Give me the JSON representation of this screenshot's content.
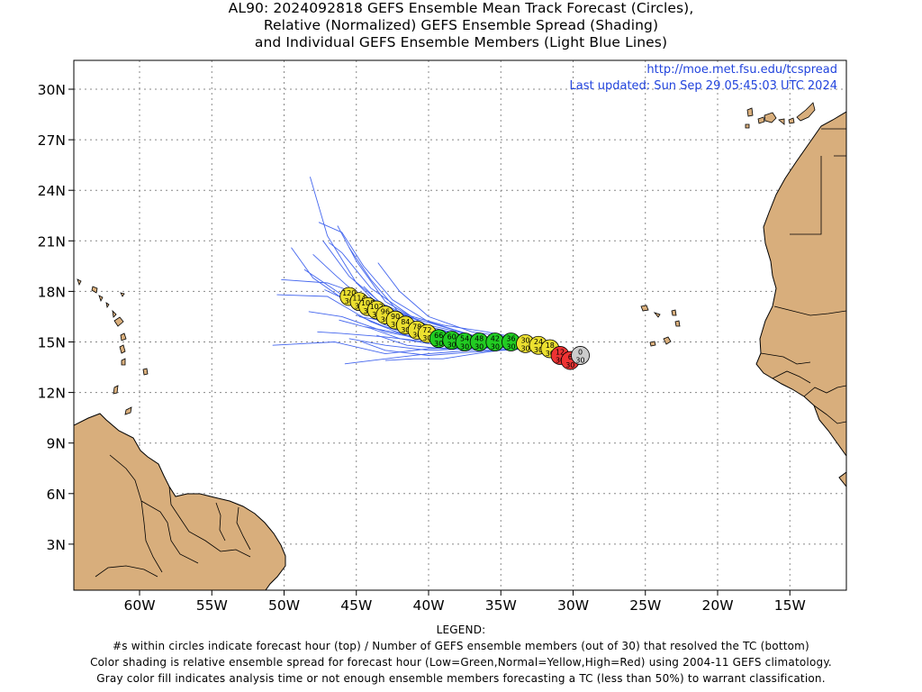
{
  "title": {
    "line1": "AL90: 2024092818 GEFS Ensemble Mean Track Forecast (Circles),",
    "line2": "Relative (Normalized) GEFS Ensemble Spread (Shading)",
    "line3": "and Individual GEFS Ensemble Members (Light Blue Lines)"
  },
  "header_links": {
    "url": "http://moe.met.fsu.edu/tcspread",
    "updated": "Last updated: Sun Sep 29 05:45:03 UTC 2024"
  },
  "axes": {
    "lat_ticks": [
      {
        "value": 3,
        "label": "3N"
      },
      {
        "value": 6,
        "label": "6N"
      },
      {
        "value": 9,
        "label": "9N"
      },
      {
        "value": 12,
        "label": "12N"
      },
      {
        "value": 15,
        "label": "15N"
      },
      {
        "value": 18,
        "label": "18N"
      },
      {
        "value": 21,
        "label": "21N"
      },
      {
        "value": 24,
        "label": "24N"
      },
      {
        "value": 27,
        "label": "27N"
      },
      {
        "value": 30,
        "label": "30N"
      }
    ],
    "lon_ticks": [
      {
        "value": -60,
        "label": "60W"
      },
      {
        "value": -55,
        "label": "55W"
      },
      {
        "value": -50,
        "label": "50W"
      },
      {
        "value": -45,
        "label": "45W"
      },
      {
        "value": -40,
        "label": "40W"
      },
      {
        "value": -35,
        "label": "35W"
      },
      {
        "value": -30,
        "label": "30W"
      },
      {
        "value": -25,
        "label": "25W"
      },
      {
        "value": -20,
        "label": "20W"
      },
      {
        "value": -15,
        "label": "15W"
      }
    ],
    "lon_range": [
      -64.5,
      -11.1
    ],
    "lat_range": [
      0.4,
      31.5
    ],
    "grid": true
  },
  "colors": {
    "land": "#d8ae7c",
    "coast": "#000000",
    "grid": "#888888",
    "members": "#4466ee",
    "low": "#22cc22",
    "normal": "#ece030",
    "high": "#ee3333",
    "gray": "#cccccc",
    "link": "#2244dd"
  },
  "mean_track": [
    {
      "lon": -29.5,
      "lat": 14.2,
      "hour": "0",
      "members": "30",
      "spread": "gray"
    },
    {
      "lon": -30.2,
      "lat": 13.9,
      "hour": "6",
      "members": "30",
      "spread": "high"
    },
    {
      "lon": -30.9,
      "lat": 14.2,
      "hour": "12",
      "members": "30",
      "spread": "high"
    },
    {
      "lon": -31.6,
      "lat": 14.6,
      "hour": "18",
      "members": "30",
      "spread": "normal"
    },
    {
      "lon": -32.4,
      "lat": 14.8,
      "hour": "24",
      "members": "30",
      "spread": "normal"
    },
    {
      "lon": -33.3,
      "lat": 14.9,
      "hour": "30",
      "members": "30",
      "spread": "normal"
    },
    {
      "lon": -34.3,
      "lat": 15.0,
      "hour": "36",
      "members": "30",
      "spread": "low"
    },
    {
      "lon": -35.4,
      "lat": 15.0,
      "hour": "42",
      "members": "30",
      "spread": "low"
    },
    {
      "lon": -36.5,
      "lat": 15.0,
      "hour": "48",
      "members": "30",
      "spread": "low"
    },
    {
      "lon": -37.5,
      "lat": 15.0,
      "hour": "54",
      "members": "30",
      "spread": "low"
    },
    {
      "lon": -38.4,
      "lat": 15.1,
      "hour": "60",
      "members": "30",
      "spread": "low"
    },
    {
      "lon": -39.3,
      "lat": 15.2,
      "hour": "66",
      "members": "30",
      "spread": "low"
    },
    {
      "lon": -40.1,
      "lat": 15.5,
      "hour": "72",
      "members": "30",
      "spread": "normal"
    },
    {
      "lon": -40.8,
      "lat": 15.7,
      "hour": "78",
      "members": "30",
      "spread": "normal"
    },
    {
      "lon": -41.6,
      "lat": 16.0,
      "hour": "84",
      "members": "30",
      "spread": "normal"
    },
    {
      "lon": -42.3,
      "lat": 16.3,
      "hour": "90",
      "members": "30",
      "spread": "normal"
    },
    {
      "lon": -43.0,
      "lat": 16.6,
      "hour": "96",
      "members": "30",
      "spread": "normal"
    },
    {
      "lon": -43.6,
      "lat": 16.9,
      "hour": "102",
      "members": "30",
      "spread": "normal"
    },
    {
      "lon": -44.2,
      "lat": 17.1,
      "hour": "108",
      "members": "30",
      "spread": "normal"
    },
    {
      "lon": -44.8,
      "lat": 17.4,
      "hour": "114",
      "members": "30",
      "spread": "normal"
    },
    {
      "lon": -45.5,
      "lat": 17.7,
      "hour": "120",
      "members": "30",
      "spread": "normal"
    }
  ],
  "member_tracks": [
    [
      [
        -29.5,
        14.2
      ],
      [
        -33,
        14.9
      ],
      [
        -37,
        15.0
      ],
      [
        -40,
        15.3
      ],
      [
        -43,
        16.0
      ],
      [
        -46,
        17.6
      ],
      [
        -48,
        18.8
      ],
      [
        -49.5,
        20.6
      ]
    ],
    [
      [
        -29.5,
        14.2
      ],
      [
        -33,
        15.0
      ],
      [
        -37,
        15.2
      ],
      [
        -40,
        15.7
      ],
      [
        -43,
        16.8
      ],
      [
        -45,
        18.5
      ],
      [
        -47,
        21.3
      ],
      [
        -48.2,
        24.8
      ]
    ],
    [
      [
        -29.5,
        14.2
      ],
      [
        -33,
        14.8
      ],
      [
        -37,
        14.9
      ],
      [
        -41,
        15.2
      ],
      [
        -44,
        16.2
      ],
      [
        -47,
        17.7
      ],
      [
        -50.5,
        17.8
      ]
    ],
    [
      [
        -29.5,
        14.2
      ],
      [
        -33,
        14.7
      ],
      [
        -37,
        14.7
      ],
      [
        -40,
        14.6
      ],
      [
        -43,
        14.3
      ],
      [
        -46.5,
        15.0
      ],
      [
        -50.8,
        14.8
      ]
    ],
    [
      [
        -29.5,
        14.2
      ],
      [
        -33,
        14.6
      ],
      [
        -37,
        14.5
      ],
      [
        -40,
        14.3
      ],
      [
        -42,
        14.1
      ],
      [
        -45.8,
        13.7
      ]
    ],
    [
      [
        -29.5,
        14.2
      ],
      [
        -33,
        14.9
      ],
      [
        -37,
        15.4
      ],
      [
        -40,
        16.2
      ],
      [
        -42.5,
        17.5
      ],
      [
        -44.5,
        19.5
      ],
      [
        -46,
        21.5
      ],
      [
        -47.6,
        22.1
      ]
    ],
    [
      [
        -29.5,
        14.2
      ],
      [
        -33,
        15.0
      ],
      [
        -37,
        15.3
      ],
      [
        -40,
        15.8
      ],
      [
        -42,
        16.7
      ],
      [
        -44,
        18.7
      ],
      [
        -45.5,
        20.6
      ]
    ],
    [
      [
        -29.5,
        14.2
      ],
      [
        -33,
        14.8
      ],
      [
        -37,
        15.0
      ],
      [
        -40,
        15.1
      ],
      [
        -43,
        15.6
      ],
      [
        -46,
        16.5
      ],
      [
        -48.3,
        16.8
      ]
    ],
    [
      [
        -29.5,
        14.2
      ],
      [
        -33,
        14.7
      ],
      [
        -37,
        14.6
      ],
      [
        -40,
        14.5
      ],
      [
        -43,
        14.8
      ],
      [
        -45.5,
        15.2
      ]
    ],
    [
      [
        -29.5,
        14.2
      ],
      [
        -33,
        15.1
      ],
      [
        -37,
        15.6
      ],
      [
        -40,
        16.5
      ],
      [
        -42,
        18.0
      ],
      [
        -43.5,
        19.7
      ]
    ],
    [
      [
        -29.5,
        14.2
      ],
      [
        -33,
        14.6
      ],
      [
        -37,
        14.4
      ],
      [
        -40,
        14.2
      ],
      [
        -43,
        14.5
      ],
      [
        -44.6,
        15.0
      ]
    ],
    [
      [
        -29.5,
        14.2
      ],
      [
        -33,
        14.9
      ],
      [
        -37,
        15.1
      ],
      [
        -40,
        15.5
      ],
      [
        -43,
        16.4
      ],
      [
        -46,
        17.8
      ],
      [
        -48.6,
        19.3
      ]
    ],
    [
      [
        -29.5,
        14.2
      ],
      [
        -33,
        15.0
      ],
      [
        -37,
        15.4
      ],
      [
        -40,
        16.0
      ],
      [
        -43,
        17.1
      ],
      [
        -45.5,
        18.9
      ],
      [
        -47.3,
        21.0
      ]
    ],
    [
      [
        -29.5,
        14.2
      ],
      [
        -33,
        14.8
      ],
      [
        -37,
        14.8
      ],
      [
        -40,
        14.9
      ],
      [
        -42,
        15.2
      ],
      [
        -44,
        15.8
      ],
      [
        -46.2,
        16.3
      ]
    ],
    [
      [
        -29.5,
        14.2
      ],
      [
        -33,
        14.7
      ],
      [
        -36,
        14.4
      ],
      [
        -39,
        14.0
      ],
      [
        -41,
        14.0
      ],
      [
        -43,
        13.9
      ]
    ],
    [
      [
        -29.5,
        14.2
      ],
      [
        -33,
        15.1
      ],
      [
        -36,
        15.6
      ],
      [
        -39,
        16.0
      ],
      [
        -41.5,
        16.6
      ],
      [
        -44,
        17.6
      ],
      [
        -47,
        18.5
      ],
      [
        -50.2,
        18.7
      ]
    ],
    [
      [
        -29.5,
        14.2
      ],
      [
        -33,
        14.9
      ],
      [
        -37,
        15.2
      ],
      [
        -41,
        15.7
      ],
      [
        -44,
        17.1
      ],
      [
        -46.5,
        19.0
      ],
      [
        -48.0,
        20.2
      ]
    ],
    [
      [
        -29.5,
        14.2
      ],
      [
        -33,
        14.6
      ],
      [
        -37,
        14.7
      ],
      [
        -40,
        15.1
      ],
      [
        -42.5,
        15.6
      ],
      [
        -44.4,
        15.9
      ]
    ],
    [
      [
        -29.5,
        14.2
      ],
      [
        -34,
        15.0
      ],
      [
        -38,
        15.3
      ],
      [
        -41,
        15.9
      ],
      [
        -43,
        17.0
      ],
      [
        -44.5,
        18.3
      ]
    ],
    [
      [
        -29.5,
        14.2
      ],
      [
        -33,
        14.8
      ],
      [
        -37,
        14.9
      ],
      [
        -40,
        15.0
      ],
      [
        -43,
        15.3
      ],
      [
        -46,
        15.5
      ],
      [
        -47.7,
        15.6
      ]
    ],
    [
      [
        -29.5,
        14.2
      ],
      [
        -33,
        14.9
      ],
      [
        -37,
        15.3
      ],
      [
        -40,
        15.9
      ],
      [
        -43,
        17.4
      ],
      [
        -45,
        19.8
      ],
      [
        -46.3,
        21.9
      ]
    ],
    [
      [
        -29.5,
        14.2
      ],
      [
        -33,
        14.7
      ],
      [
        -37,
        14.8
      ],
      [
        -40,
        15.4
      ],
      [
        -42,
        16.1
      ],
      [
        -44.8,
        16.5
      ]
    ],
    [
      [
        -29.5,
        14.2
      ],
      [
        -33,
        15.0
      ],
      [
        -37,
        15.1
      ],
      [
        -40,
        15.6
      ],
      [
        -43,
        16.3
      ],
      [
        -45.2,
        17.3
      ],
      [
        -47.2,
        18.1
      ]
    ],
    [
      [
        -29.5,
        14.2
      ],
      [
        -33,
        14.8
      ],
      [
        -36,
        14.7
      ],
      [
        -39,
        14.6
      ],
      [
        -41.5,
        14.8
      ],
      [
        -43.6,
        15.4
      ]
    ],
    [
      [
        -29.5,
        14.2
      ],
      [
        -33,
        15.0
      ],
      [
        -37,
        15.4
      ],
      [
        -41,
        16.4
      ],
      [
        -44,
        18.2
      ],
      [
        -46,
        20.3
      ],
      [
        -46.9,
        20.9
      ]
    ],
    [
      [
        -29.5,
        14.2
      ],
      [
        -33,
        14.9
      ],
      [
        -37,
        15.0
      ],
      [
        -40,
        15.2
      ],
      [
        -43,
        15.9
      ],
      [
        -45,
        16.6
      ]
    ]
  ]
}
